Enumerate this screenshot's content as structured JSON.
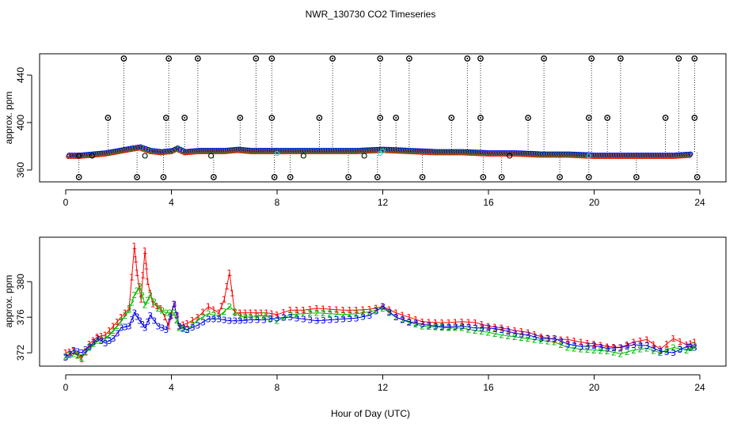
{
  "title": "NWR_130730  CO2 Timeseries",
  "xlabel": "Hour of Day (UTC)",
  "colors": {
    "series1": "#ff0000",
    "series2": "#00cc00",
    "series3": "#0000ff",
    "outlier": "#000000",
    "cyan": "#00e5ee"
  },
  "chart_data": [
    {
      "type": "scatter",
      "ylabel": "approx. ppm",
      "xlim": [
        0,
        24
      ],
      "ylim": [
        350,
        458
      ],
      "xticks": [
        0,
        4,
        8,
        12,
        16,
        20,
        24
      ],
      "yticks": [
        360,
        400,
        440
      ],
      "base_series": [
        {
          "x": [
            0.1,
            0.5,
            1.0,
            1.5,
            2.0,
            2.5,
            2.8,
            3.2,
            3.6,
            4.0,
            4.2,
            4.5,
            5.0,
            5.5,
            6.0,
            6.5,
            7.0,
            7.5,
            8.0,
            9.0,
            10.0,
            11.0,
            12.0,
            13.0,
            14.0,
            15.0,
            16.0,
            17.0,
            18.0,
            19.0,
            20.0,
            21.0,
            22.0,
            23.0,
            23.7
          ],
          "y": [
            372,
            372,
            373,
            374,
            376,
            378,
            379,
            376,
            375,
            376,
            378,
            375,
            376,
            376,
            376,
            377,
            376,
            376,
            376,
            376,
            376,
            376,
            377,
            376,
            375,
            375,
            374,
            374,
            373,
            373,
            372,
            372,
            372,
            372,
            373
          ]
        }
      ],
      "outliers": [
        {
          "x": 0.5,
          "y": 354
        },
        {
          "x": 1.6,
          "y": 404
        },
        {
          "x": 2.2,
          "y": 454
        },
        {
          "x": 2.7,
          "y": 354
        },
        {
          "x": 3.7,
          "y": 354
        },
        {
          "x": 3.8,
          "y": 404
        },
        {
          "x": 3.9,
          "y": 454
        },
        {
          "x": 4.5,
          "y": 404
        },
        {
          "x": 5.0,
          "y": 454
        },
        {
          "x": 5.6,
          "y": 354
        },
        {
          "x": 6.6,
          "y": 404
        },
        {
          "x": 7.2,
          "y": 454
        },
        {
          "x": 7.8,
          "y": 454
        },
        {
          "x": 7.8,
          "y": 404
        },
        {
          "x": 7.9,
          "y": 354
        },
        {
          "x": 8.5,
          "y": 354
        },
        {
          "x": 9.6,
          "y": 404
        },
        {
          "x": 10.1,
          "y": 454
        },
        {
          "x": 10.7,
          "y": 354
        },
        {
          "x": 11.8,
          "y": 354
        },
        {
          "x": 11.9,
          "y": 404
        },
        {
          "x": 11.9,
          "y": 454
        },
        {
          "x": 12.5,
          "y": 404
        },
        {
          "x": 13.0,
          "y": 454
        },
        {
          "x": 13.5,
          "y": 354
        },
        {
          "x": 14.6,
          "y": 404
        },
        {
          "x": 15.2,
          "y": 454
        },
        {
          "x": 15.7,
          "y": 454
        },
        {
          "x": 15.7,
          "y": 404
        },
        {
          "x": 15.8,
          "y": 354
        },
        {
          "x": 16.5,
          "y": 354
        },
        {
          "x": 17.5,
          "y": 404
        },
        {
          "x": 18.1,
          "y": 454
        },
        {
          "x": 18.7,
          "y": 354
        },
        {
          "x": 19.8,
          "y": 354
        },
        {
          "x": 19.8,
          "y": 404
        },
        {
          "x": 19.9,
          "y": 454
        },
        {
          "x": 20.5,
          "y": 404
        },
        {
          "x": 21.0,
          "y": 454
        },
        {
          "x": 21.6,
          "y": 354
        },
        {
          "x": 22.7,
          "y": 404
        },
        {
          "x": 23.2,
          "y": 454
        },
        {
          "x": 23.8,
          "y": 454
        },
        {
          "x": 23.8,
          "y": 404
        },
        {
          "x": 23.9,
          "y": 354
        }
      ]
    },
    {
      "type": "scatter",
      "ylabel": "approx. ppm",
      "xlim": [
        0,
        24
      ],
      "ylim": [
        370.5,
        385
      ],
      "xticks": [
        0,
        4,
        8,
        12,
        16,
        20,
        24
      ],
      "yticks": [
        372,
        376,
        380
      ],
      "series": [
        {
          "symbol": "1",
          "color": "#ff0000",
          "x": [
            0.0,
            0.3,
            0.6,
            0.9,
            1.2,
            1.5,
            1.8,
            2.1,
            2.4,
            2.6,
            2.7,
            2.85,
            3.0,
            3.1,
            3.3,
            3.6,
            3.9,
            4.1,
            4.3,
            4.6,
            5.0,
            5.4,
            5.8,
            6.0,
            6.2,
            6.4,
            6.8,
            7.2,
            7.6,
            8.0,
            8.5,
            9.0,
            9.5,
            10.0,
            10.5,
            11.0,
            11.5,
            12.0,
            12.5,
            13.0,
            13.5,
            14.0,
            14.5,
            15.0,
            15.5,
            16.0,
            16.5,
            17.0,
            17.5,
            18.0,
            18.5,
            19.0,
            19.5,
            20.0,
            20.5,
            21.0,
            21.5,
            22.0,
            22.5,
            23.0,
            23.5,
            23.8
          ],
          "y": [
            372.0,
            372.2,
            371.3,
            373.0,
            373.8,
            374.0,
            375.0,
            376.0,
            377.0,
            384.0,
            381.0,
            378.0,
            383.5,
            380.0,
            377.5,
            377.0,
            375.0,
            377.5,
            375.0,
            375.3,
            376.0,
            377.2,
            376.5,
            378.0,
            381.0,
            376.5,
            376.5,
            376.5,
            376.5,
            376.3,
            376.8,
            376.8,
            377.0,
            376.9,
            376.8,
            376.8,
            376.9,
            377.2,
            376.5,
            376.0,
            375.5,
            375.4,
            375.4,
            375.5,
            375.4,
            375.0,
            374.8,
            374.5,
            374.3,
            373.8,
            373.5,
            373.5,
            373.2,
            373.0,
            372.7,
            372.6,
            373.2,
            373.5,
            372.4,
            373.6,
            372.9,
            373.2
          ]
        },
        {
          "symbol": "2",
          "color": "#00bb00",
          "x": [
            0.0,
            0.3,
            0.6,
            0.9,
            1.2,
            1.5,
            1.8,
            2.1,
            2.4,
            2.6,
            2.8,
            3.0,
            3.2,
            3.5,
            3.8,
            4.1,
            4.3,
            4.6,
            5.0,
            5.4,
            5.8,
            6.2,
            6.6,
            7.0,
            7.5,
            8.0,
            8.5,
            9.0,
            9.5,
            10.0,
            10.5,
            11.0,
            11.5,
            12.0,
            12.5,
            13.0,
            13.5,
            14.0,
            14.5,
            15.0,
            15.5,
            16.0,
            16.5,
            17.0,
            17.5,
            18.0,
            18.5,
            19.0,
            19.5,
            20.0,
            20.5,
            21.0,
            21.5,
            22.0,
            22.5,
            23.0,
            23.5,
            23.8
          ],
          "y": [
            371.6,
            371.9,
            371.5,
            372.6,
            373.4,
            373.6,
            374.5,
            375.6,
            376.8,
            378.5,
            379.5,
            377.4,
            378.5,
            377.0,
            376.5,
            376.5,
            374.8,
            374.6,
            375.7,
            376.4,
            376.1,
            377.2,
            376.1,
            376.0,
            376.2,
            375.6,
            376.3,
            376.4,
            376.5,
            376.4,
            376.3,
            376.4,
            376.6,
            377.0,
            376.0,
            375.4,
            375.0,
            374.9,
            374.8,
            374.8,
            374.5,
            374.3,
            374.0,
            373.8,
            373.6,
            373.4,
            373.2,
            372.6,
            372.4,
            372.3,
            372.2,
            371.9,
            372.3,
            372.5,
            372.0,
            372.6,
            372.3,
            372.8
          ]
        },
        {
          "symbol": "3",
          "color": "#0000ee",
          "x": [
            0.0,
            0.3,
            0.6,
            0.9,
            1.2,
            1.5,
            1.8,
            2.1,
            2.4,
            2.6,
            2.8,
            3.0,
            3.2,
            3.5,
            3.8,
            4.1,
            4.3,
            4.6,
            5.0,
            5.4,
            5.8,
            6.2,
            6.6,
            7.0,
            7.5,
            8.0,
            8.5,
            9.0,
            9.5,
            10.0,
            10.5,
            11.0,
            11.5,
            12.0,
            12.5,
            13.0,
            13.5,
            14.0,
            14.5,
            15.0,
            15.5,
            16.0,
            16.5,
            17.0,
            17.5,
            18.0,
            18.5,
            19.0,
            19.5,
            20.0,
            20.5,
            21.0,
            21.5,
            22.0,
            22.5,
            23.0,
            23.5,
            23.8
          ],
          "y": [
            371.5,
            372.3,
            372.0,
            372.7,
            373.6,
            373.1,
            373.6,
            374.8,
            375.0,
            376.5,
            375.6,
            374.8,
            376.2,
            375.0,
            374.6,
            377.5,
            375.0,
            374.6,
            375.1,
            375.8,
            375.8,
            375.6,
            375.6,
            375.7,
            375.7,
            375.9,
            376.0,
            375.8,
            375.6,
            375.7,
            375.8,
            375.9,
            376.2,
            377.2,
            376.0,
            375.5,
            375.2,
            375.0,
            374.9,
            375.0,
            374.8,
            374.8,
            374.6,
            374.2,
            374.0,
            373.6,
            373.6,
            373.0,
            372.7,
            372.8,
            372.5,
            372.6,
            372.9,
            372.8,
            372.2,
            372.0,
            372.7,
            372.6
          ]
        }
      ]
    }
  ]
}
